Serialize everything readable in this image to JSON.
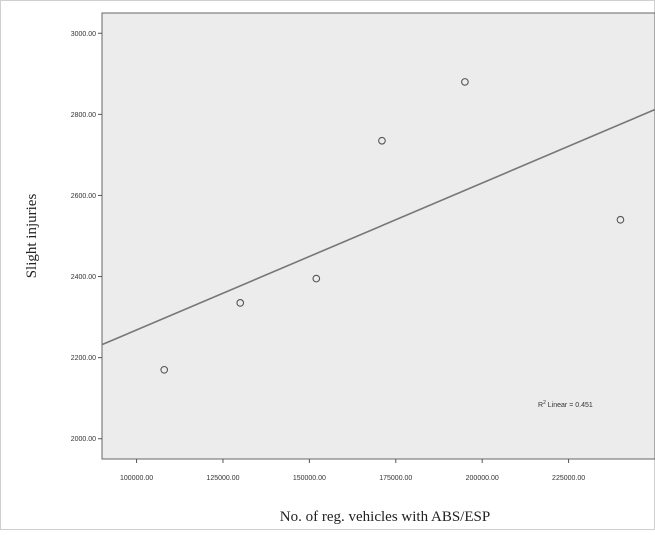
{
  "chart_data": {
    "type": "scatter",
    "title": "",
    "xlabel": "No. of reg. vehicles with ABS/ESP",
    "ylabel": "Slight injuries",
    "xlim": [
      90000,
      250000
    ],
    "ylim": [
      1950,
      3050
    ],
    "x_ticks": [
      100000,
      125000,
      150000,
      175000,
      200000,
      225000
    ],
    "x_tick_labels": [
      "100000.00",
      "125000.00",
      "150000.00",
      "175000.00",
      "200000.00",
      "225000.00"
    ],
    "y_ticks": [
      2000,
      2200,
      2400,
      2600,
      2800,
      3000
    ],
    "y_tick_labels": [
      "2000.00",
      "2200.00",
      "2400.00",
      "2600.00",
      "2800.00",
      "3000.00"
    ],
    "points": [
      {
        "x": 108000,
        "y": 2170
      },
      {
        "x": 130000,
        "y": 2335
      },
      {
        "x": 152000,
        "y": 2395
      },
      {
        "x": 171000,
        "y": 2735
      },
      {
        "x": 195000,
        "y": 2880
      },
      {
        "x": 240000,
        "y": 2540
      }
    ],
    "fit_line": {
      "type": "linear",
      "x": [
        90000,
        250000
      ],
      "y": [
        2232,
        2812
      ]
    },
    "annotation_prefix": "R",
    "annotation_sup": "2",
    "annotation_text": " Linear = 0.451",
    "grid": false,
    "legend": "none",
    "colors": {
      "plot_background": "#ececec",
      "marker": "#555555",
      "fit_line": "#777777"
    }
  }
}
